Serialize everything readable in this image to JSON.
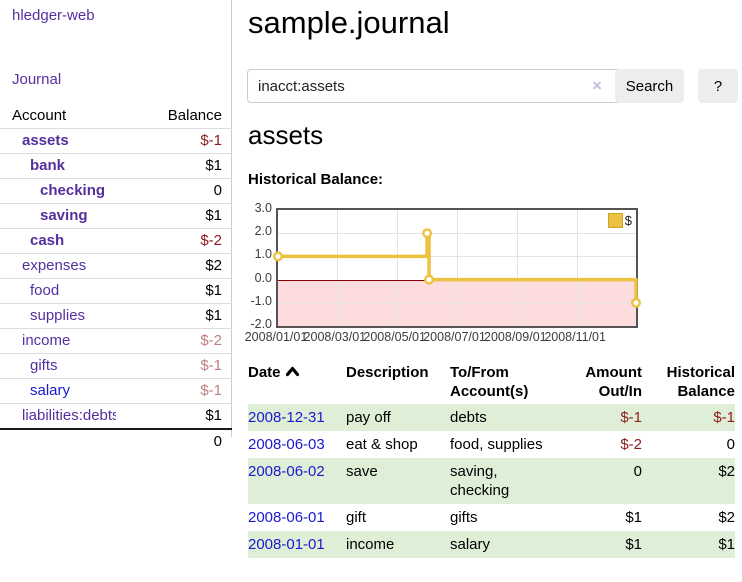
{
  "app": {
    "title": "hledger-web"
  },
  "sidebar": {
    "journal_link": "Journal",
    "accounts": {
      "col_account": "Account",
      "col_balance": "Balance",
      "rows": [
        {
          "name": "assets",
          "balance": "$-1",
          "level": 0,
          "bold": true,
          "balance_style": "neg-strong",
          "link": "purple"
        },
        {
          "name": "bank",
          "balance": "$1",
          "level": 1,
          "bold": true,
          "balance_style": "pos",
          "link": "purple"
        },
        {
          "name": "checking",
          "balance": "0",
          "level": 2,
          "bold": true,
          "balance_style": "pos",
          "link": "purple"
        },
        {
          "name": "saving",
          "balance": "$1",
          "level": 2,
          "bold": true,
          "balance_style": "pos",
          "link": "purple"
        },
        {
          "name": "cash",
          "balance": "$-2",
          "level": 1,
          "bold": true,
          "balance_style": "neg-strong",
          "link": "purple"
        },
        {
          "name": "expenses",
          "balance": "$2",
          "level": 0,
          "bold": false,
          "balance_style": "pos",
          "link": "purple"
        },
        {
          "name": "food",
          "balance": "$1",
          "level": 1,
          "bold": false,
          "balance_style": "pos",
          "link": "purple"
        },
        {
          "name": "supplies",
          "balance": "$1",
          "level": 1,
          "bold": false,
          "balance_style": "pos",
          "link": "purple"
        },
        {
          "name": "income",
          "balance": "$-2",
          "level": 0,
          "bold": false,
          "balance_style": "neg-soft",
          "link": "purple"
        },
        {
          "name": "gifts",
          "balance": "$-1",
          "level": 1,
          "bold": false,
          "balance_style": "neg-soft",
          "link": "purple"
        },
        {
          "name": "salary",
          "balance": "$-1",
          "level": 1,
          "bold": false,
          "balance_style": "neg-soft",
          "link": "blue"
        },
        {
          "name": "liabilities:debts",
          "balance": "$1",
          "level": 0,
          "bold": false,
          "balance_style": "pos",
          "link": "purple"
        }
      ],
      "total": "0"
    }
  },
  "header": {
    "title": "sample.journal"
  },
  "search": {
    "value": "inacct:assets",
    "clear_icon": "×",
    "search_button": "Search",
    "help_button": "?"
  },
  "account_page": {
    "heading": "assets",
    "chart_label": "Historical Balance:"
  },
  "chart_data": {
    "type": "line",
    "step": true,
    "title": "Historical Balance:",
    "series": [
      {
        "name": "$",
        "color": "#edc240",
        "points": [
          [
            "2008-01-01",
            1
          ],
          [
            "2008-06-01",
            2
          ],
          [
            "2008-06-03",
            0
          ],
          [
            "2008-12-31",
            -1
          ]
        ]
      }
    ],
    "y_ticks": [
      3.0,
      2.0,
      1.0,
      0.0,
      -1.0,
      -2.0
    ],
    "x_ticks": [
      {
        "label": "2008/01/01",
        "day": 0
      },
      {
        "label": "2008/03/01",
        "day": 60
      },
      {
        "label": "2008/05/01",
        "day": 121
      },
      {
        "label": "2008/07/01",
        "day": 182
      },
      {
        "label": "2008/09/01",
        "day": 244
      },
      {
        "label": "2008/11/01",
        "day": 305
      }
    ],
    "x_range_days": 365,
    "ylim": [
      -2,
      3
    ],
    "grid": true,
    "legend_label": "$",
    "legend_position": "top-right",
    "negative_region_color": "#fcdcdc",
    "zero_line_color": "#8b0000"
  },
  "register": {
    "headers": [
      "Date",
      "Description",
      "To/From\nAccount(s)",
      "Amount\nOut/In",
      "Historical\nBalance"
    ],
    "sort_column": "Date",
    "sort_direction": "ascending",
    "rows": [
      {
        "date": "2008-12-31",
        "description": "pay off",
        "accounts": "debts",
        "amount": "$-1",
        "balance": "$-1"
      },
      {
        "date": "2008-06-03",
        "description": "eat & shop",
        "accounts": "food, supplies",
        "amount": "$-2",
        "balance": "0"
      },
      {
        "date": "2008-06-02",
        "description": "save",
        "accounts": "saving,\nchecking",
        "amount": "0",
        "balance": "$2"
      },
      {
        "date": "2008-06-01",
        "description": "gift",
        "accounts": "gifts",
        "amount": "$1",
        "balance": "$2"
      },
      {
        "date": "2008-01-01",
        "description": "income",
        "accounts": "salary",
        "amount": "$1",
        "balance": "$1"
      }
    ]
  }
}
